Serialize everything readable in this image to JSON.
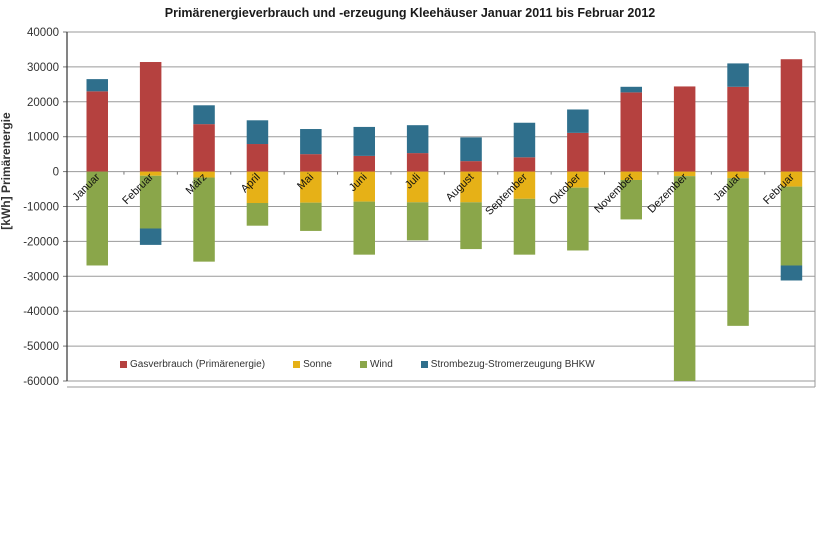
{
  "chart_data": {
    "type": "bar",
    "stacked": true,
    "title": "Primärenergieverbrauch und -erzeugung Kleehäuser Januar 2011 bis Februar 2012",
    "xlabel": "",
    "ylabel": "[kWh] Primärenergie",
    "ylim": [
      -60000,
      40000
    ],
    "yticks": [
      40000,
      30000,
      20000,
      10000,
      0,
      -10000,
      -20000,
      -30000,
      -40000,
      -50000,
      -60000
    ],
    "grid": true,
    "legend_position": "bottom-inside",
    "categories": [
      "Januar",
      "Februar",
      "März",
      "April",
      "Mai",
      "Juni",
      "Juli",
      "August",
      "September",
      "Oktober",
      "November",
      "Dezember",
      "Januar",
      "Februar"
    ],
    "series": [
      {
        "name": "Gasverbrauch (Primärenergie)",
        "color": "#b5413f",
        "values": [
          23000,
          31400,
          13600,
          7900,
          5000,
          4500,
          5300,
          3000,
          4100,
          11100,
          22700,
          24400,
          24300,
          32200
        ]
      },
      {
        "name": "Sonne",
        "color": "#e6b117",
        "values": [
          0,
          -1200,
          -1700,
          -9000,
          -8900,
          -8600,
          -8800,
          -8800,
          -7800,
          -4600,
          -2400,
          -1300,
          -1900,
          -4300
        ]
      },
      {
        "name": "Wind",
        "color": "#8aa64a",
        "values": [
          -26900,
          -15100,
          -24100,
          -6500,
          -8100,
          -15200,
          -10900,
          -13400,
          -16000,
          -18000,
          -11300,
          -58700,
          -42300,
          -22600
        ]
      },
      {
        "name": "Strombezug-Stromerzeugung BHKW",
        "color": "#2f6f8c",
        "values": [
          3500,
          -4700,
          5400,
          6800,
          7200,
          8300,
          8000,
          6800,
          9900,
          6700,
          1600,
          0,
          6700,
          -4300
        ]
      }
    ]
  },
  "title": "Primärenergieverbrauch und -erzeugung Kleehäuser Januar 2011 bis Februar 2012",
  "ylabel": "[kWh] Primärenergie",
  "legend": [
    {
      "label": "Gasverbrauch (Primärenergie)",
      "color": "#b5413f"
    },
    {
      "label": "Sonne",
      "color": "#e6b117"
    },
    {
      "label": "Wind",
      "color": "#8aa64a"
    },
    {
      "label": "Strombezug-Stromerzeugung BHKW",
      "color": "#2f6f8c"
    }
  ]
}
